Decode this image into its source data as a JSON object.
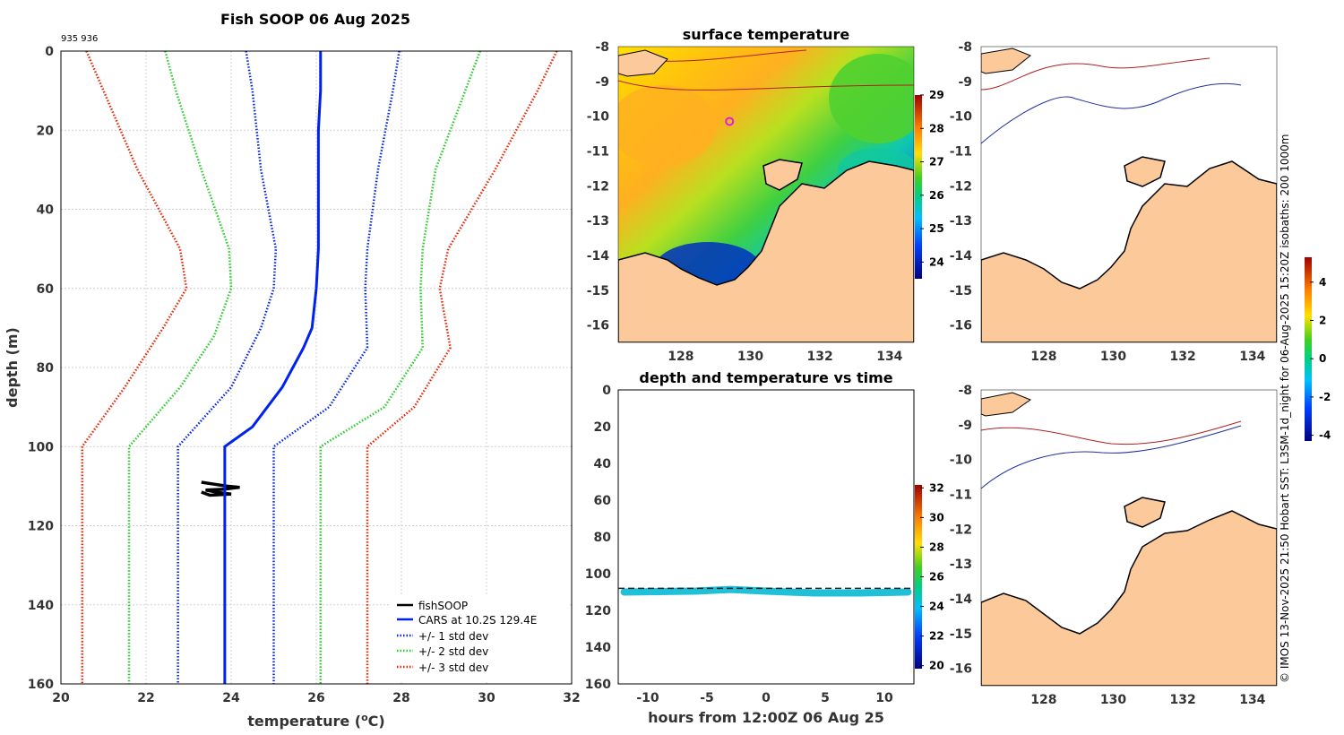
{
  "chart_data": [
    {
      "type": "line",
      "title": "Fish SOOP 06 Aug 2025",
      "subtitle": "935 936",
      "xlabel": "temperature (",
      "xlabel_super": "o",
      "xlabel_end": "C)",
      "ylabel": "depth (m)",
      "xlim": [
        20,
        32
      ],
      "ylim": [
        0,
        160
      ],
      "xticks": [
        20,
        22,
        24,
        26,
        28,
        30,
        32
      ],
      "yticks": [
        0,
        20,
        40,
        60,
        80,
        100,
        120,
        140,
        160
      ],
      "legend_position": "bottom-right",
      "series": [
        {
          "name": "fishSOOP",
          "style": "solid",
          "color": "#000000",
          "points": [
            [
              23.3,
              109
            ],
            [
              23.6,
              109.5
            ],
            [
              23.9,
              110
            ],
            [
              24.2,
              110.3
            ],
            [
              23.8,
              110.8
            ],
            [
              23.4,
              111
            ],
            [
              23.7,
              111.6
            ],
            [
              24.0,
              112
            ],
            [
              23.5,
              112.3
            ],
            [
              23.3,
              111.5
            ]
          ]
        },
        {
          "name": "CARS at 10.2S 129.4E",
          "style": "solid",
          "color": "#0022ee",
          "points": [
            [
              26.1,
              0
            ],
            [
              26.1,
              10
            ],
            [
              26.05,
              20
            ],
            [
              26.05,
              40
            ],
            [
              26.05,
              50
            ],
            [
              26.0,
              60
            ],
            [
              25.9,
              70
            ],
            [
              25.7,
              75
            ],
            [
              25.2,
              85
            ],
            [
              24.5,
              95
            ],
            [
              23.85,
              100
            ],
            [
              23.85,
              130
            ],
            [
              23.85,
              160
            ]
          ]
        },
        {
          "name": "+/- 1 std dev",
          "style": "dotted",
          "color": "#0022ee",
          "points": [
            [
              24.35,
              0
            ],
            [
              24.5,
              10
            ],
            [
              24.7,
              30
            ],
            [
              25.05,
              50
            ],
            [
              25.0,
              60
            ],
            [
              24.7,
              70
            ],
            [
              24.0,
              85
            ],
            [
              22.75,
              100
            ],
            [
              22.75,
              160
            ]
          ],
          "points2": [
            [
              27.95,
              0
            ],
            [
              27.8,
              10
            ],
            [
              27.45,
              30
            ],
            [
              27.2,
              50
            ],
            [
              27.15,
              60
            ],
            [
              27.2,
              75
            ],
            [
              26.3,
              90
            ],
            [
              25.0,
              100
            ],
            [
              25.0,
              160
            ]
          ]
        },
        {
          "name": "+/- 2 std dev",
          "style": "dotted",
          "color": "#22cc22",
          "points": [
            [
              22.45,
              0
            ],
            [
              22.7,
              10
            ],
            [
              23.3,
              30
            ],
            [
              23.95,
              50
            ],
            [
              24.0,
              60
            ],
            [
              23.6,
              72
            ],
            [
              22.8,
              85
            ],
            [
              21.6,
              100
            ],
            [
              21.6,
              160
            ]
          ],
          "points2": [
            [
              29.85,
              0
            ],
            [
              29.5,
              10
            ],
            [
              28.8,
              30
            ],
            [
              28.5,
              50
            ],
            [
              28.45,
              60
            ],
            [
              28.5,
              75
            ],
            [
              27.6,
              90
            ],
            [
              26.1,
              100
            ],
            [
              26.1,
              160
            ]
          ]
        },
        {
          "name": "+/- 3 std dev",
          "style": "dotted",
          "color": "#ee2200",
          "points": [
            [
              20.6,
              0
            ],
            [
              21.0,
              10
            ],
            [
              21.8,
              30
            ],
            [
              22.8,
              50
            ],
            [
              22.95,
              60
            ],
            [
              22.4,
              70
            ],
            [
              21.5,
              85
            ],
            [
              20.5,
              100
            ],
            [
              20.5,
              160
            ]
          ],
          "points2": [
            [
              31.65,
              0
            ],
            [
              31.2,
              10
            ],
            [
              30.2,
              30
            ],
            [
              29.1,
              50
            ],
            [
              28.9,
              60
            ],
            [
              29.15,
              75
            ],
            [
              28.3,
              90
            ],
            [
              27.2,
              100
            ],
            [
              27.2,
              160
            ]
          ]
        }
      ]
    },
    {
      "type": "heatmap",
      "title": "surface temperature",
      "xlim": [
        126.2,
        134.7
      ],
      "ylim": [
        -16.5,
        -8
      ],
      "xticks": [
        128,
        130,
        132,
        134
      ],
      "yticks": [
        -8,
        -9,
        -10,
        -11,
        -12,
        -13,
        -14,
        -15,
        -16
      ],
      "marker": {
        "lon": 129.4,
        "lat": -10.15,
        "color": "#e020e0"
      },
      "colorbar": {
        "min": 23.5,
        "max": 29,
        "ticks": [
          24,
          25,
          26,
          27,
          28,
          29
        ]
      }
    },
    {
      "type": "scatter",
      "title": "depth and temperature vs time",
      "xlabel": "hours from 12:00Z 06 Aug 25",
      "xlim": [
        -12.5,
        12.5
      ],
      "ylim": [
        0,
        160
      ],
      "xticks": [
        -10,
        -5,
        0,
        5,
        10
      ],
      "yticks": [
        0,
        20,
        40,
        60,
        80,
        100,
        120,
        140,
        160
      ],
      "reference_depth": 108,
      "depth_band": [
        [
          -12,
          110
        ],
        [
          -6,
          109.5
        ],
        [
          -3,
          108.6
        ],
        [
          0,
          109.5
        ],
        [
          4,
          110.5
        ],
        [
          8,
          110.5
        ],
        [
          12,
          110
        ]
      ],
      "colorbar": {
        "min": 19.8,
        "max": 32.2,
        "ticks": [
          20,
          22,
          24,
          26,
          28,
          30,
          32
        ]
      }
    },
    {
      "type": "heatmap",
      "title": "",
      "xlim": [
        126.2,
        134.7
      ],
      "ylim": [
        -16.5,
        -8
      ],
      "xticks": [
        128,
        130,
        132,
        134
      ],
      "yticks": [
        -8,
        -9,
        -10,
        -11,
        -12,
        -13,
        -14,
        -15,
        -16
      ],
      "colorbar": {
        "min": -4.3,
        "max": 5.3,
        "ticks": [
          -4,
          -2,
          0,
          2,
          4
        ]
      }
    },
    {
      "type": "heatmap",
      "title": "",
      "xlim": [
        126.2,
        134.7
      ],
      "ylim": [
        -16.5,
        -8
      ],
      "xticks": [
        128,
        130,
        132,
        134
      ],
      "yticks": [
        -8,
        -9,
        -10,
        -11,
        -12,
        -13,
        -14,
        -15,
        -16
      ]
    }
  ],
  "credit": "© IMOS 13-Nov-2025 21:50 Hobart SST: L3SM-1d_night for 06-Aug-2025 15:20Z isobaths: 200  1000m",
  "colors": {
    "land": "#fbc99a",
    "shallow_isobath": "#b02020",
    "deep_isobath": "#2030a0",
    "grid": "#d0d0d0"
  }
}
